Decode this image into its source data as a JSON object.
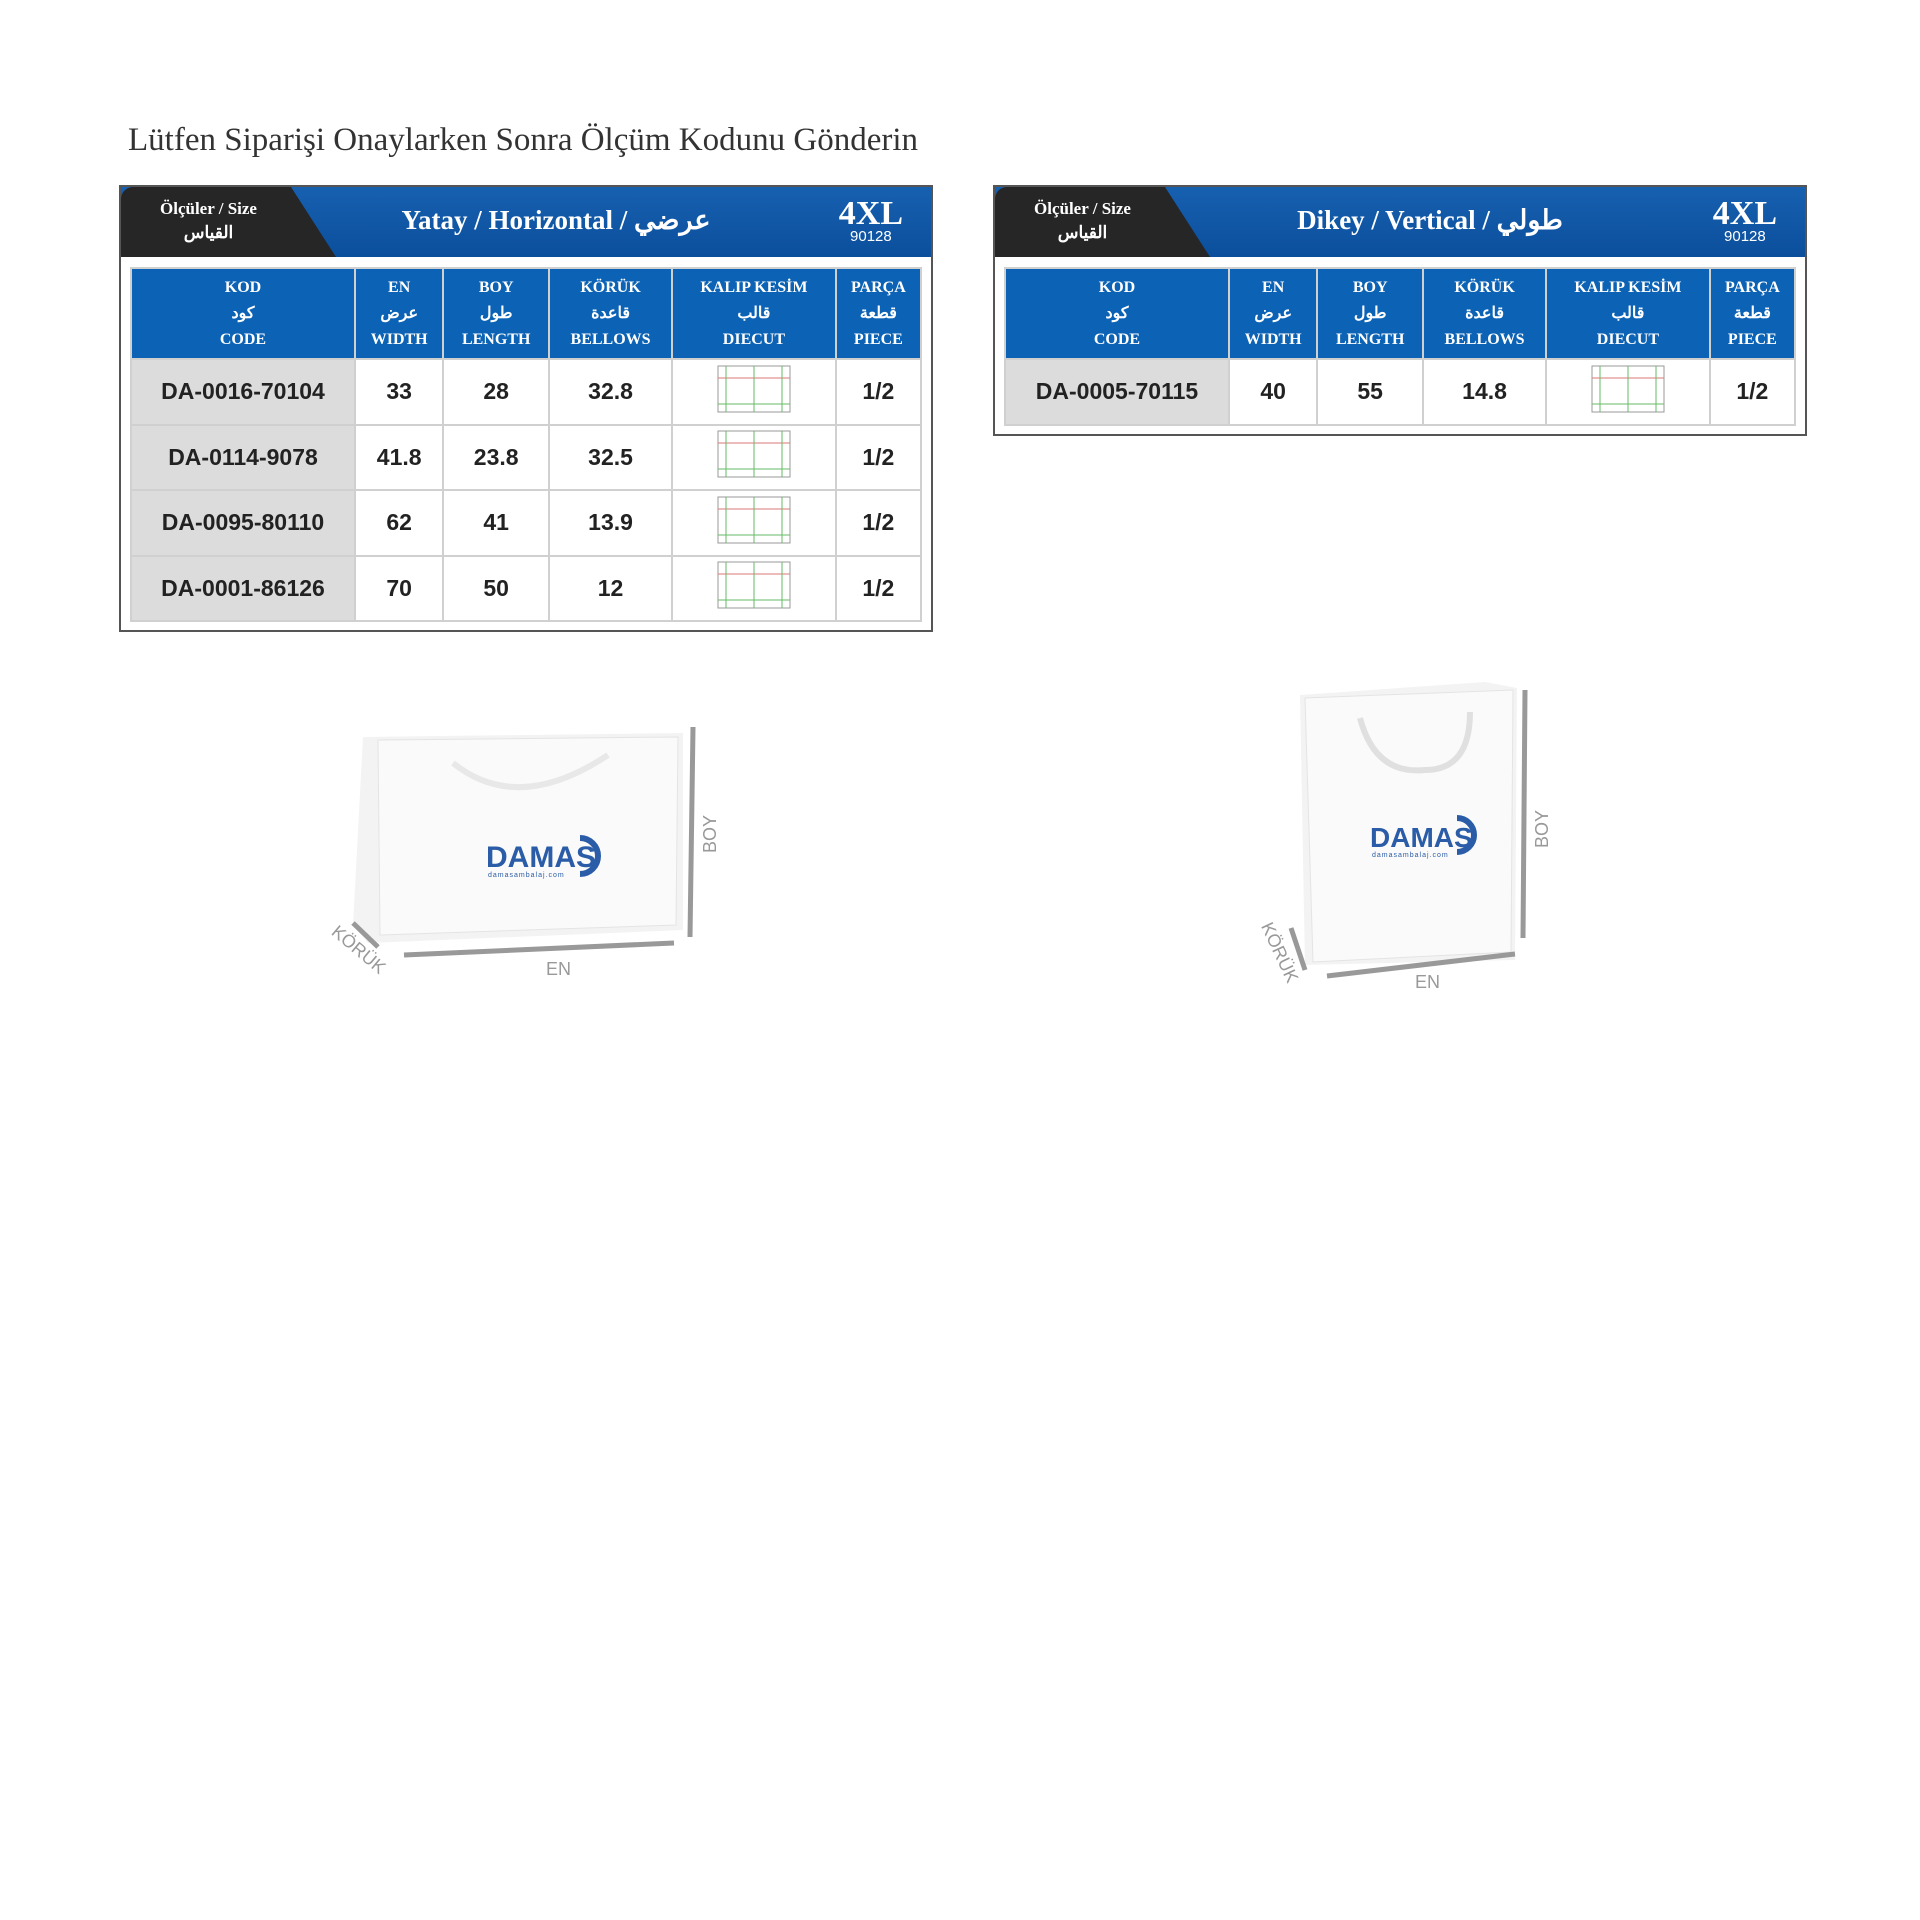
{
  "title": "Lütfen Siparişi Onaylarken Sonra Ölçüm Kodunu Gönderin",
  "headers": [
    {
      "tr": "KOD",
      "ar": "كود",
      "en": "CODE"
    },
    {
      "tr": "EN",
      "ar": "عرض",
      "en": "WIDTH"
    },
    {
      "tr": "BOY",
      "ar": "طول",
      "en": "LENGTH"
    },
    {
      "tr": "KÖRÜK",
      "ar": "قاعدة",
      "en": "BELLOWS"
    },
    {
      "tr": "KALIP KESİM",
      "ar": "قالب",
      "en": "DIECUT"
    },
    {
      "tr": "PARÇA",
      "ar": "قطعة",
      "en": "PIECE"
    }
  ],
  "size_label": "Ölçüler / Size",
  "size_label_ar": "القياس",
  "horizontal": {
    "title": "Yatay / Horizontal / عرضي",
    "size": "4XL",
    "size_code": "90128",
    "rows": [
      {
        "code": "DA-0016-70104",
        "width": "33",
        "length": "28",
        "bellows": "32.8",
        "piece": "1/2"
      },
      {
        "code": "DA-0114-9078",
        "width": "41.8",
        "length": "23.8",
        "bellows": "32.5",
        "piece": "1/2"
      },
      {
        "code": "DA-0095-80110",
        "width": "62",
        "length": "41",
        "bellows": "13.9",
        "piece": "1/2"
      },
      {
        "code": "DA-0001-86126",
        "width": "70",
        "length": "50",
        "bellows": "12",
        "piece": "1/2"
      }
    ]
  },
  "vertical": {
    "title": "Dikey / Vertical / طولي",
    "size": "4XL",
    "size_code": "90128",
    "rows": [
      {
        "code": "DA-0005-70115",
        "width": "40",
        "length": "55",
        "bellows": "14.8",
        "piece": "1/2"
      }
    ]
  },
  "bag": {
    "brand": "DAMAS",
    "site": "damasambalaj.com",
    "dim_en": "EN",
    "dim_boy": "BOY",
    "dim_koruk": "KÖRÜK",
    "brand_color": "#2a5ca8"
  }
}
